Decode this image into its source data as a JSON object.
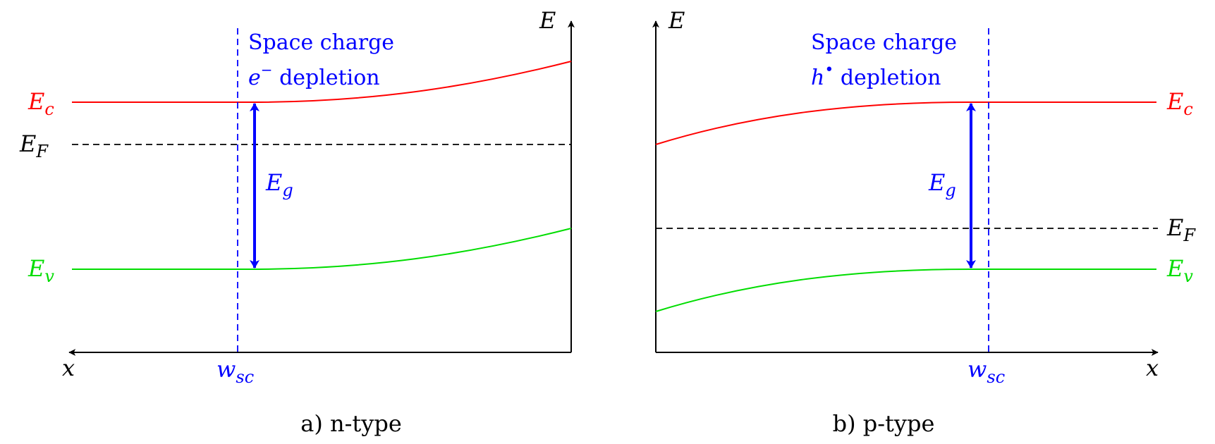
{
  "colors": {
    "conduction_band": "#ff0000",
    "valence_band": "#00dd00",
    "fermi_level": "#000000",
    "space_charge": "#0000ff",
    "axes": "#000000",
    "background": "#ffffff"
  },
  "labels": {
    "energy_axis": "E",
    "position_axis": "x",
    "conduction": {
      "main": "E",
      "sub": "c"
    },
    "valence": {
      "main": "E",
      "sub": "v"
    },
    "fermi": {
      "main": "E",
      "sub": "F"
    },
    "gap": {
      "main": "E",
      "sub": "g"
    },
    "width": {
      "main": "w",
      "sub": "sc"
    },
    "space_charge_title": "Space charge",
    "depletion_suffix": " depletion",
    "electron_symbol": "e",
    "electron_superscript": "−",
    "hole_symbol": "h",
    "hole_superscript": "•"
  },
  "panels": [
    {
      "id": "a",
      "caption": "a) n-type"
    },
    {
      "id": "b",
      "caption": "b) p-type"
    }
  ]
}
